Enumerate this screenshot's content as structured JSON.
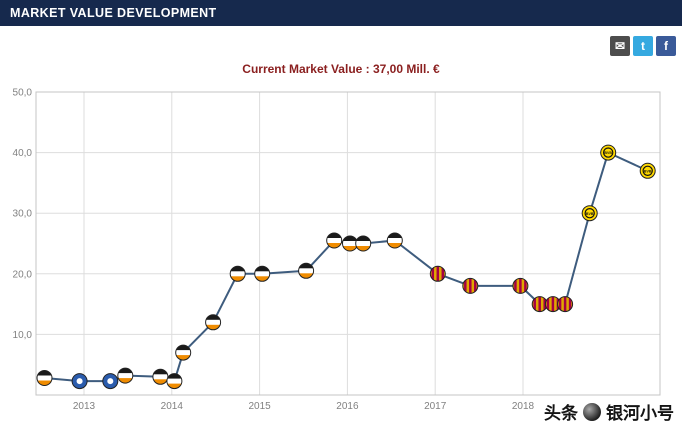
{
  "header": {
    "title": "MARKET VALUE DEVELOPMENT"
  },
  "social": {
    "email": "✉",
    "twitter": "t",
    "facebook": "f"
  },
  "chart_title": "Current Market Value : 37,00 Mill. €",
  "watermark": {
    "brand": "头条",
    "handle": "银河小号"
  },
  "colors": {
    "header_bg": "#16294d",
    "line": "#3e5c7e",
    "chart_title_text": "#8b2020",
    "email_bg": "#4d4d4d",
    "twitter_bg": "#35a9e0",
    "facebook_bg": "#3a5a99"
  },
  "clubs": {
    "valencia": {
      "primary": "#f08c00",
      "secondary": "#1a1a1a",
      "base": "#ffffff"
    },
    "getafe": {
      "primary": "#2b5cad",
      "base": "#ffffff"
    },
    "barcelona": {
      "primary": "#a50044",
      "secondary": "#e0a800"
    },
    "dortmund": {
      "primary": "#ffd900",
      "secondary": "#111111",
      "label": "BVB"
    }
  },
  "chart_data": {
    "type": "line",
    "title": "Current Market Value : 37,00 Mill. €",
    "unit": "Mill. €",
    "ylim": [
      0,
      50
    ],
    "yticks": [
      10,
      20,
      30,
      40,
      50
    ],
    "ytick_labels": [
      "10,0",
      "20,0",
      "30,0",
      "40,0",
      "50,0"
    ],
    "xticks": [
      2013,
      2014,
      2015,
      2016,
      2017,
      2018
    ],
    "grid": true,
    "legend": "none",
    "points": [
      {
        "x": 2012.55,
        "value": 2.8,
        "club": "valencia"
      },
      {
        "x": 2012.95,
        "value": 2.3,
        "club": "getafe"
      },
      {
        "x": 2013.3,
        "value": 2.3,
        "club": "getafe"
      },
      {
        "x": 2013.47,
        "value": 3.2,
        "club": "valencia"
      },
      {
        "x": 2013.87,
        "value": 3.0,
        "club": "valencia"
      },
      {
        "x": 2014.03,
        "value": 2.3,
        "club": "valencia"
      },
      {
        "x": 2014.13,
        "value": 7.0,
        "club": "valencia"
      },
      {
        "x": 2014.47,
        "value": 12.0,
        "club": "valencia"
      },
      {
        "x": 2014.75,
        "value": 20.0,
        "club": "valencia"
      },
      {
        "x": 2015.03,
        "value": 20.0,
        "club": "valencia"
      },
      {
        "x": 2015.53,
        "value": 20.5,
        "club": "valencia"
      },
      {
        "x": 2015.85,
        "value": 25.5,
        "club": "valencia"
      },
      {
        "x": 2016.03,
        "value": 25.0,
        "club": "valencia"
      },
      {
        "x": 2016.18,
        "value": 25.0,
        "club": "valencia"
      },
      {
        "x": 2016.54,
        "value": 25.5,
        "club": "valencia"
      },
      {
        "x": 2017.03,
        "value": 20.0,
        "club": "barcelona"
      },
      {
        "x": 2017.4,
        "value": 18.0,
        "club": "barcelona"
      },
      {
        "x": 2017.97,
        "value": 18.0,
        "club": "barcelona"
      },
      {
        "x": 2018.19,
        "value": 15.0,
        "club": "barcelona"
      },
      {
        "x": 2018.34,
        "value": 15.0,
        "club": "barcelona"
      },
      {
        "x": 2018.48,
        "value": 15.0,
        "club": "barcelona"
      },
      {
        "x": 2018.76,
        "value": 30.0,
        "club": "dortmund"
      },
      {
        "x": 2018.97,
        "value": 40.0,
        "club": "dortmund"
      },
      {
        "x": 2019.42,
        "value": 37.0,
        "club": "dortmund"
      }
    ]
  }
}
